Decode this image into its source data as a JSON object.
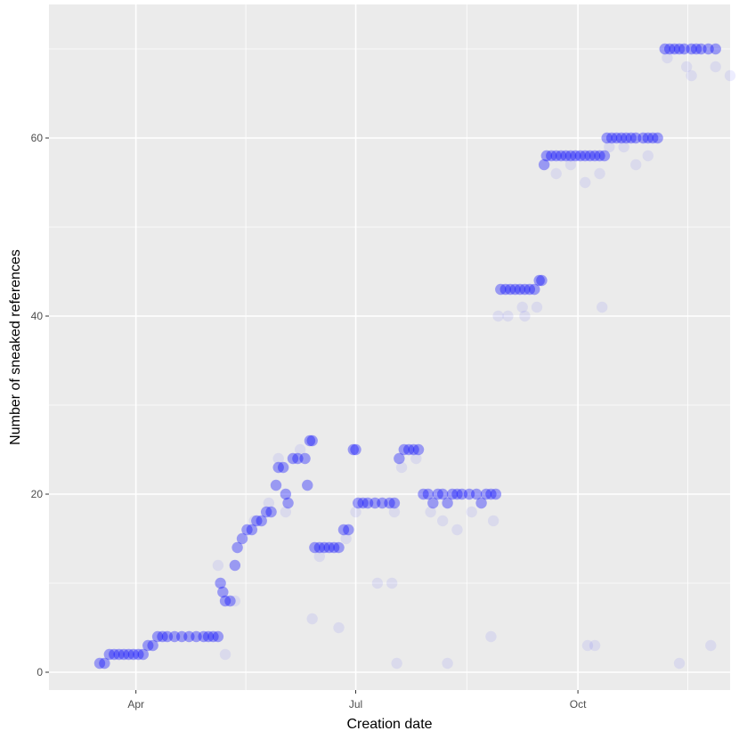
{
  "colors": {
    "panel": "#ebebeb",
    "grid_major": "#ffffff",
    "point": "#0000ff",
    "tick": "#333333"
  },
  "chart_data": {
    "type": "scatter",
    "xlabel": "Creation date",
    "ylabel": "Number of sneaked references",
    "x_ticks": [
      {
        "date": "2020-04-01",
        "label": "Apr"
      },
      {
        "date": "2020-07-01",
        "label": "Jul"
      },
      {
        "date": "2020-10-01",
        "label": "Oct"
      }
    ],
    "y_ticks": [
      0,
      20,
      40,
      60
    ],
    "xlim": [
      "2020-02-25",
      "2020-12-03"
    ],
    "ylim": [
      -2,
      75
    ],
    "grid": true,
    "legend": "none",
    "series": [
      {
        "points": [
          [
            "2020-03-17",
            1
          ],
          [
            "2020-03-19",
            1
          ],
          [
            "2020-03-21",
            2
          ],
          [
            "2020-03-23",
            2
          ],
          [
            "2020-03-25",
            2
          ],
          [
            "2020-03-27",
            2
          ],
          [
            "2020-03-29",
            2
          ],
          [
            "2020-03-31",
            2
          ],
          [
            "2020-04-02",
            2
          ],
          [
            "2020-04-04",
            2
          ],
          [
            "2020-04-06",
            3
          ],
          [
            "2020-04-08",
            3
          ],
          [
            "2020-04-10",
            4
          ],
          [
            "2020-04-12",
            4
          ],
          [
            "2020-04-14",
            4
          ],
          [
            "2020-04-17",
            4
          ],
          [
            "2020-04-20",
            4
          ],
          [
            "2020-04-23",
            4
          ],
          [
            "2020-04-26",
            4
          ],
          [
            "2020-04-29",
            4
          ],
          [
            "2020-05-01",
            4
          ],
          [
            "2020-05-03",
            4
          ],
          [
            "2020-05-05",
            4
          ],
          [
            "2020-05-06",
            10
          ],
          [
            "2020-05-07",
            9
          ],
          [
            "2020-05-08",
            8
          ],
          [
            "2020-05-10",
            8
          ],
          [
            "2020-05-12",
            12
          ],
          [
            "2020-05-13",
            14
          ],
          [
            "2020-05-15",
            15
          ],
          [
            "2020-05-17",
            16
          ],
          [
            "2020-05-19",
            16
          ],
          [
            "2020-05-21",
            17
          ],
          [
            "2020-05-23",
            17
          ],
          [
            "2020-05-25",
            18
          ],
          [
            "2020-05-27",
            18
          ],
          [
            "2020-05-29",
            21
          ],
          [
            "2020-05-30",
            23
          ],
          [
            "2020-06-01",
            23
          ],
          [
            "2020-06-02",
            20
          ],
          [
            "2020-06-03",
            19
          ],
          [
            "2020-06-05",
            24
          ],
          [
            "2020-06-07",
            24
          ],
          [
            "2020-06-10",
            24
          ],
          [
            "2020-06-11",
            21
          ],
          [
            "2020-06-12",
            26
          ],
          [
            "2020-06-13",
            26
          ],
          [
            "2020-06-14",
            14
          ],
          [
            "2020-06-16",
            14
          ],
          [
            "2020-06-18",
            14
          ],
          [
            "2020-06-20",
            14
          ],
          [
            "2020-06-22",
            14
          ],
          [
            "2020-06-24",
            14
          ],
          [
            "2020-06-26",
            16
          ],
          [
            "2020-06-28",
            16
          ],
          [
            "2020-06-30",
            25
          ],
          [
            "2020-07-01",
            25
          ],
          [
            "2020-07-02",
            19
          ],
          [
            "2020-07-04",
            19
          ],
          [
            "2020-07-06",
            19
          ],
          [
            "2020-07-09",
            19
          ],
          [
            "2020-07-12",
            19
          ],
          [
            "2020-07-15",
            19
          ],
          [
            "2020-07-17",
            19
          ],
          [
            "2020-07-19",
            24
          ],
          [
            "2020-07-21",
            25
          ],
          [
            "2020-07-23",
            25
          ],
          [
            "2020-07-25",
            25
          ],
          [
            "2020-07-27",
            25
          ],
          [
            "2020-07-29",
            20
          ],
          [
            "2020-07-31",
            20
          ],
          [
            "2020-08-02",
            19
          ],
          [
            "2020-08-04",
            20
          ],
          [
            "2020-08-06",
            20
          ],
          [
            "2020-08-08",
            19
          ],
          [
            "2020-08-10",
            20
          ],
          [
            "2020-08-12",
            20
          ],
          [
            "2020-08-14",
            20
          ],
          [
            "2020-08-17",
            20
          ],
          [
            "2020-08-20",
            20
          ],
          [
            "2020-08-22",
            19
          ],
          [
            "2020-08-24",
            20
          ],
          [
            "2020-08-26",
            20
          ],
          [
            "2020-08-28",
            20
          ],
          [
            "2020-08-30",
            43
          ],
          [
            "2020-09-01",
            43
          ],
          [
            "2020-09-03",
            43
          ],
          [
            "2020-09-05",
            43
          ],
          [
            "2020-09-07",
            43
          ],
          [
            "2020-09-09",
            43
          ],
          [
            "2020-09-11",
            43
          ],
          [
            "2020-09-13",
            43
          ],
          [
            "2020-09-15",
            44
          ],
          [
            "2020-09-16",
            44
          ],
          [
            "2020-09-17",
            57
          ],
          [
            "2020-09-18",
            58
          ],
          [
            "2020-09-20",
            58
          ],
          [
            "2020-09-22",
            58
          ],
          [
            "2020-09-24",
            58
          ],
          [
            "2020-09-26",
            58
          ],
          [
            "2020-09-28",
            58
          ],
          [
            "2020-09-30",
            58
          ],
          [
            "2020-10-02",
            58
          ],
          [
            "2020-10-04",
            58
          ],
          [
            "2020-10-06",
            58
          ],
          [
            "2020-10-08",
            58
          ],
          [
            "2020-10-10",
            58
          ],
          [
            "2020-10-12",
            58
          ],
          [
            "2020-10-13",
            60
          ],
          [
            "2020-10-15",
            60
          ],
          [
            "2020-10-17",
            60
          ],
          [
            "2020-10-19",
            60
          ],
          [
            "2020-10-21",
            60
          ],
          [
            "2020-10-23",
            60
          ],
          [
            "2020-10-25",
            60
          ],
          [
            "2020-10-28",
            60
          ],
          [
            "2020-10-30",
            60
          ],
          [
            "2020-11-01",
            60
          ],
          [
            "2020-11-03",
            60
          ],
          [
            "2020-11-06",
            70
          ],
          [
            "2020-11-08",
            70
          ],
          [
            "2020-11-10",
            70
          ],
          [
            "2020-11-12",
            70
          ],
          [
            "2020-11-14",
            70
          ],
          [
            "2020-11-17",
            70
          ],
          [
            "2020-11-19",
            70
          ],
          [
            "2020-11-21",
            70
          ],
          [
            "2020-11-24",
            70
          ],
          [
            "2020-11-27",
            70
          ]
        ]
      },
      {
        "points": [
          [
            "2020-05-08",
            2
          ],
          [
            "2020-05-05",
            12
          ],
          [
            "2020-05-12",
            8
          ],
          [
            "2020-05-20",
            17
          ],
          [
            "2020-05-26",
            19
          ],
          [
            "2020-05-30",
            24
          ],
          [
            "2020-06-02",
            18
          ],
          [
            "2020-06-08",
            25
          ],
          [
            "2020-06-13",
            6
          ],
          [
            "2020-06-16",
            13
          ],
          [
            "2020-06-24",
            5
          ],
          [
            "2020-06-27",
            15
          ],
          [
            "2020-07-01",
            18
          ],
          [
            "2020-07-10",
            10
          ],
          [
            "2020-07-16",
            10
          ],
          [
            "2020-07-17",
            18
          ],
          [
            "2020-07-18",
            1
          ],
          [
            "2020-07-20",
            23
          ],
          [
            "2020-07-26",
            24
          ],
          [
            "2020-08-01",
            18
          ],
          [
            "2020-08-06",
            17
          ],
          [
            "2020-08-08",
            1
          ],
          [
            "2020-08-12",
            16
          ],
          [
            "2020-08-18",
            18
          ],
          [
            "2020-08-26",
            4
          ],
          [
            "2020-08-27",
            17
          ],
          [
            "2020-08-29",
            40
          ],
          [
            "2020-09-02",
            40
          ],
          [
            "2020-09-08",
            41
          ],
          [
            "2020-09-09",
            40
          ],
          [
            "2020-09-14",
            41
          ],
          [
            "2020-09-22",
            56
          ],
          [
            "2020-09-28",
            57
          ],
          [
            "2020-10-04",
            55
          ],
          [
            "2020-10-05",
            3
          ],
          [
            "2020-10-08",
            3
          ],
          [
            "2020-10-10",
            56
          ],
          [
            "2020-10-11",
            41
          ],
          [
            "2020-10-14",
            59
          ],
          [
            "2020-10-20",
            59
          ],
          [
            "2020-10-25",
            57
          ],
          [
            "2020-10-30",
            58
          ],
          [
            "2020-11-07",
            69
          ],
          [
            "2020-11-12",
            1
          ],
          [
            "2020-11-15",
            68
          ],
          [
            "2020-11-17",
            67
          ],
          [
            "2020-11-25",
            3
          ],
          [
            "2020-11-27",
            68
          ],
          [
            "2020-12-03",
            67
          ]
        ]
      }
    ]
  }
}
